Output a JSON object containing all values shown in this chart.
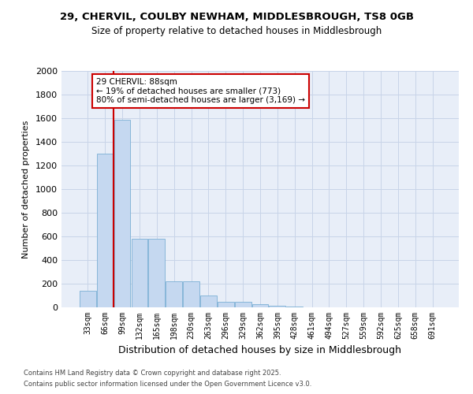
{
  "title_line1": "29, CHERVIL, COULBY NEWHAM, MIDDLESBROUGH, TS8 0GB",
  "title_line2": "Size of property relative to detached houses in Middlesbrough",
  "xlabel": "Distribution of detached houses by size in Middlesbrough",
  "ylabel": "Number of detached properties",
  "categories": [
    "33sqm",
    "66sqm",
    "99sqm",
    "132sqm",
    "165sqm",
    "198sqm",
    "230sqm",
    "263sqm",
    "296sqm",
    "329sqm",
    "362sqm",
    "395sqm",
    "428sqm",
    "461sqm",
    "494sqm",
    "527sqm",
    "559sqm",
    "592sqm",
    "625sqm",
    "658sqm",
    "691sqm"
  ],
  "values": [
    140,
    1300,
    1590,
    580,
    580,
    220,
    220,
    100,
    50,
    50,
    25,
    15,
    5,
    3,
    1,
    1,
    0,
    0,
    0,
    0,
    0
  ],
  "bar_color": "#c5d8f0",
  "bar_edge_color": "#7bafd4",
  "grid_color": "#c8d4e8",
  "bg_color": "#e8eef8",
  "red_line_index": 2,
  "annotation_line1": "29 CHERVIL: 88sqm",
  "annotation_line2": "← 19% of detached houses are smaller (773)",
  "annotation_line3": "80% of semi-detached houses are larger (3,169) →",
  "annotation_box_color": "#cc0000",
  "ylim": [
    0,
    2000
  ],
  "yticks": [
    0,
    200,
    400,
    600,
    800,
    1000,
    1200,
    1400,
    1600,
    1800,
    2000
  ],
  "footer_line1": "Contains HM Land Registry data © Crown copyright and database right 2025.",
  "footer_line2": "Contains public sector information licensed under the Open Government Licence v3.0."
}
